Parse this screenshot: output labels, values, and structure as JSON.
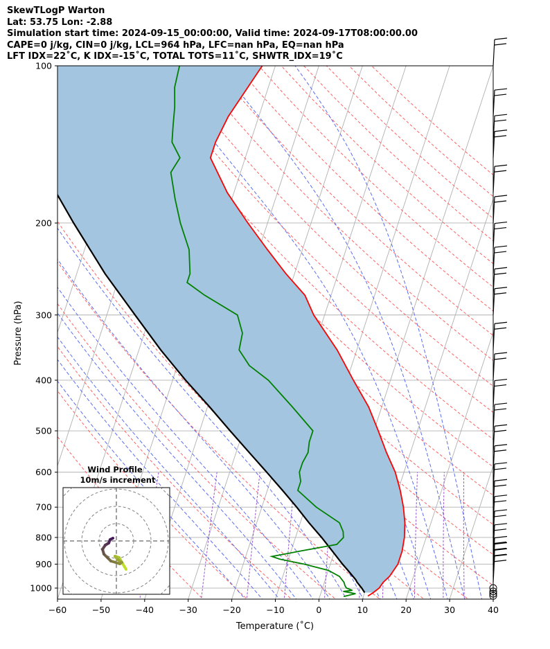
{
  "header": {
    "line1": "SkewTLogP Warton",
    "line2": "Lat: 53.75   Lon: -2.88",
    "line3": "Simulation start time: 2024-09-15_00:00:00, Valid time: 2024-09-17T08:00:00.00",
    "line4": "CAPE=0 j/kg, CIN=0 j/kg, LCL=964 hPa, LFC=nan hPa, EQ=nan hPa",
    "line5": "LFT IDX=22˚C, K IDX=-15˚C, TOTAL TOTS=11˚C, SHWTR_IDX=19˚C"
  },
  "colors": {
    "temperature": "#ff0000",
    "dewpoint": "#008000",
    "parcel": "#000000",
    "cape_fill": "#a3c5df",
    "dry_adiabat": "#ff6060",
    "moist_adiabat": "#5a6cf0",
    "mixing_ratio": "#9955cc",
    "isotherm": "#b0b0b0"
  },
  "chart_data": {
    "type": "line",
    "xlabel": "Temperature (˚C)",
    "ylabel": "Pressure (hPa)",
    "xlim": [
      -60,
      40
    ],
    "ylim": [
      1050,
      100
    ],
    "y_scale": "log",
    "x_ticks": [
      "−60",
      "−50",
      "−40",
      "−30",
      "−20",
      "−10",
      "0",
      "10",
      "20",
      "30",
      "40"
    ],
    "y_ticks": [
      "100",
      "200",
      "300",
      "400",
      "500",
      "600",
      "700",
      "800",
      "900",
      "1000"
    ],
    "grid": true,
    "series": [
      {
        "name": "temperature",
        "pressure": [
          1036,
          1020,
          1000,
          975,
          950,
          925,
          900,
          850,
          800,
          750,
          700,
          650,
          600,
          550,
          500,
          450,
          400,
          350,
          300,
          275,
          250,
          225,
          200,
          175,
          150,
          140,
          125,
          100
        ],
        "temperature": [
          11.0,
          12.0,
          13.0,
          13.5,
          14.5,
          15.0,
          15.5,
          15.5,
          15.0,
          14.0,
          12.5,
          10.5,
          8.0,
          4.5,
          1.0,
          -3.0,
          -8.5,
          -14.5,
          -22.5,
          -26.0,
          -32.0,
          -38.0,
          -44.5,
          -51.5,
          -58.0,
          -58.0,
          -57.0,
          -53.0
        ]
      },
      {
        "name": "dewpoint",
        "pressure": [
          1038,
          1025,
          1015,
          1010,
          1000,
          990,
          975,
          950,
          925,
          900,
          880,
          870,
          860,
          850,
          825,
          800,
          780,
          750,
          700,
          650,
          625,
          600,
          575,
          550,
          525,
          500,
          450,
          400,
          375,
          350,
          325,
          300,
          275,
          260,
          250,
          225,
          200,
          180,
          160,
          150,
          140,
          130,
          120,
          110,
          100
        ],
        "dewpoint": [
          5.5,
          8.0,
          5.0,
          7.0,
          5.5,
          5.0,
          4.5,
          3.0,
          0.0,
          -6.0,
          -12.0,
          -14.0,
          -11.0,
          -8.0,
          0.0,
          1.0,
          0.5,
          -1.0,
          -7.5,
          -13.0,
          -13.0,
          -14.0,
          -14.0,
          -13.5,
          -14.0,
          -14.0,
          -20.5,
          -28.0,
          -33.5,
          -37.0,
          -37.5,
          -40.0,
          -49.0,
          -54.0,
          -54.0,
          -56.0,
          -60.0,
          -63.0,
          -66.0,
          -65.0,
          -68.0,
          -69.0,
          -70.0,
          -71.5,
          -72.0
        ]
      },
      {
        "name": "parcel",
        "pressure": [
          1020,
          1000,
          975,
          964,
          925,
          900,
          850,
          800,
          750,
          700,
          650,
          600,
          550,
          500,
          450,
          400,
          350,
          300,
          250,
          200,
          150,
          100
        ],
        "temperature": [
          10.0,
          9.0,
          7.5,
          7.0,
          4.5,
          2.8,
          -0.5,
          -4.0,
          -8.0,
          -12.0,
          -16.5,
          -21.5,
          -27.0,
          -33.0,
          -39.5,
          -47.0,
          -55.0,
          -63.5,
          -73.5,
          -84.5,
          -98.0,
          -117.0
        ]
      }
    ],
    "wind_barbs": {
      "pressure": [
        1035,
        1025,
        1015,
        1000,
        975,
        950,
        925,
        900,
        850,
        800,
        750,
        700,
        650,
        600,
        550,
        500,
        450,
        400,
        350,
        300,
        275,
        250,
        225,
        200,
        175,
        150,
        140,
        125,
        100
      ],
      "calm": [
        true,
        true,
        true,
        true,
        false,
        false,
        false,
        false,
        false,
        false,
        false,
        false,
        false,
        false,
        false,
        false,
        false,
        false,
        false,
        false,
        false,
        false,
        false,
        false,
        false,
        false,
        false,
        false,
        false
      ]
    },
    "hodograph": {
      "title": "Wind Profile",
      "subtitle": "10m/s increment"
    }
  }
}
